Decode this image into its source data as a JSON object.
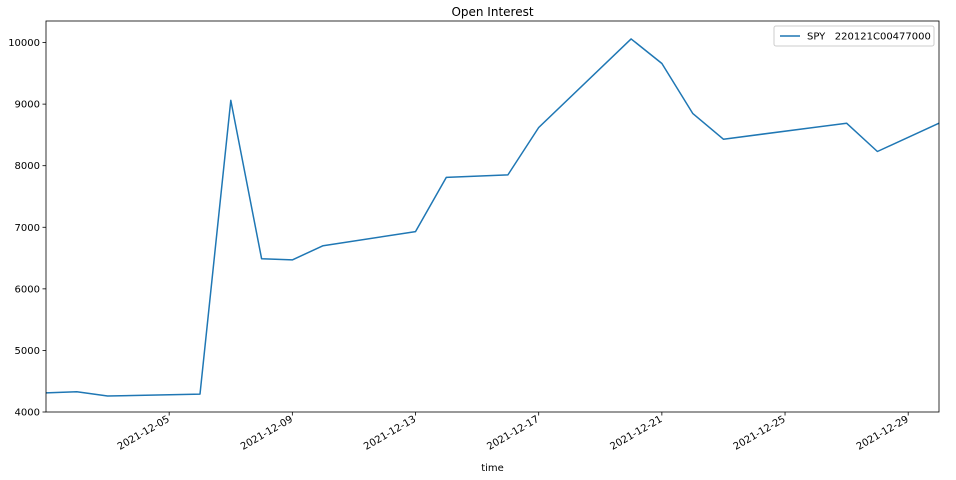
{
  "chart_data": {
    "type": "line",
    "title": "Open Interest",
    "xlabel": "time",
    "ylabel": "",
    "x_type": "date",
    "xlim": [
      "2021-12-01",
      "2021-12-30"
    ],
    "ylim": [
      4000,
      10350
    ],
    "x_ticks": [
      "2021-12-05",
      "2021-12-09",
      "2021-12-13",
      "2021-12-17",
      "2021-12-21",
      "2021-12-25",
      "2021-12-29"
    ],
    "y_ticks": [
      4000,
      5000,
      6000,
      7000,
      8000,
      9000,
      10000
    ],
    "legend_position": "top-right",
    "grid": false,
    "series": [
      {
        "name": "SPY   220121C00477000",
        "color": "#1f77b4",
        "x": [
          "2021-12-01",
          "2021-12-02",
          "2021-12-03",
          "2021-12-06",
          "2021-12-07",
          "2021-12-08",
          "2021-12-09",
          "2021-12-10",
          "2021-12-13",
          "2021-12-14",
          "2021-12-16",
          "2021-12-17",
          "2021-12-20",
          "2021-12-21",
          "2021-12-22",
          "2021-12-23",
          "2021-12-27",
          "2021-12-28",
          "2021-12-30"
        ],
        "values": [
          4310,
          4330,
          4260,
          4290,
          9060,
          6490,
          6470,
          6700,
          6930,
          7810,
          7850,
          8620,
          10060,
          9660,
          8850,
          8430,
          8690,
          8230,
          8690
        ]
      }
    ]
  }
}
